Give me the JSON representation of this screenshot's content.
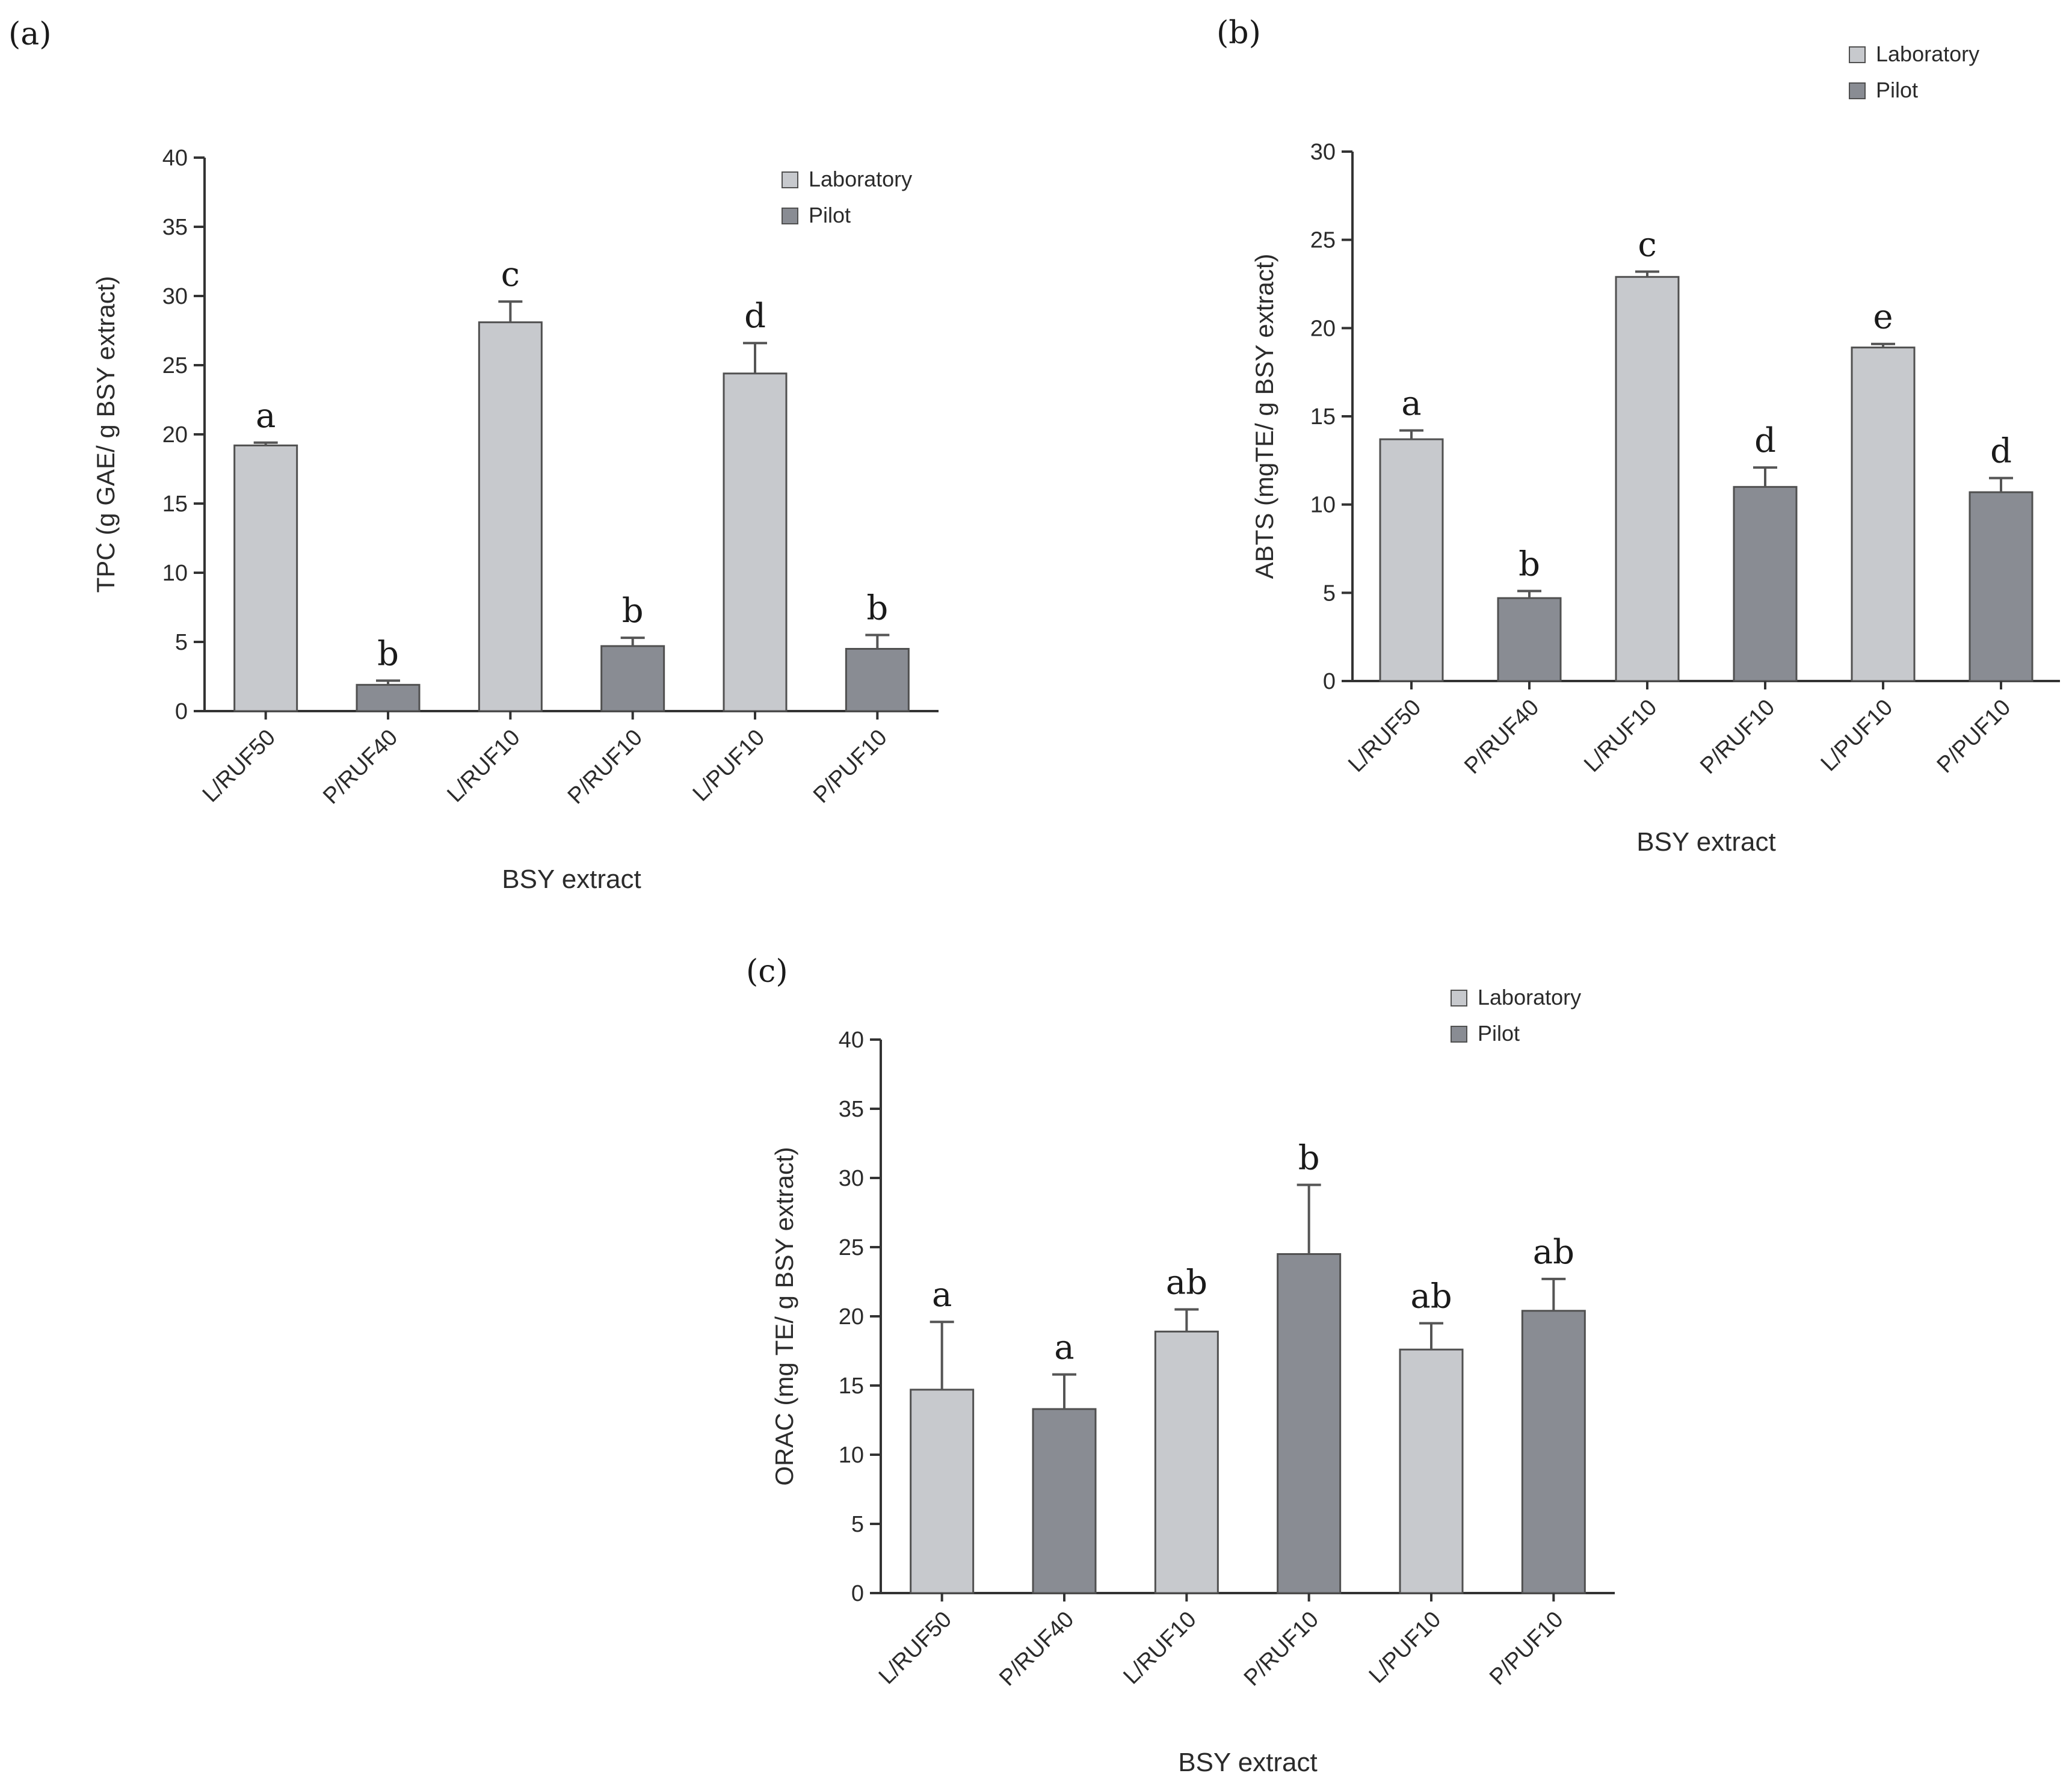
{
  "series_colors": {
    "Laboratory": "#c7c9cd",
    "Pilot": "#898c93"
  },
  "chart_data": [
    {
      "panel_label": "(a)",
      "type": "bar",
      "title": "",
      "xlabel": "BSY extract",
      "ylabel": "TPC (g GAE/ g BSY extract)",
      "ylim": [
        0,
        40
      ],
      "yticks": [
        0,
        5,
        10,
        15,
        20,
        25,
        30,
        35,
        40
      ],
      "legend": {
        "position": "top-right",
        "entries": [
          "Laboratory",
          "Pilot"
        ]
      },
      "categories": [
        "L/RUF50",
        "P/RUF40",
        "L/RUF10",
        "P/RUF10",
        "L/PUF10",
        "P/PUF10"
      ],
      "bar_series": [
        "Laboratory",
        "Pilot",
        "Laboratory",
        "Pilot",
        "Laboratory",
        "Pilot"
      ],
      "values": [
        19.2,
        1.9,
        28.1,
        4.7,
        24.4,
        4.5
      ],
      "errors": [
        0.2,
        0.3,
        1.5,
        0.6,
        2.2,
        1.0
      ],
      "significance": [
        "a",
        "b",
        "c",
        "b",
        "d",
        "b"
      ]
    },
    {
      "panel_label": "(b)",
      "type": "bar",
      "title": "",
      "xlabel": "BSY extract",
      "ylabel": "ABTS (mgTE/ g BSY extract)",
      "ylim": [
        0,
        30
      ],
      "yticks": [
        0,
        5,
        10,
        15,
        20,
        25,
        30
      ],
      "legend": {
        "position": "top-right",
        "entries": [
          "Laboratory",
          "Pilot"
        ]
      },
      "categories": [
        "L/RUF50",
        "P/RUF40",
        "L/RUF10",
        "P/RUF10",
        "L/PUF10",
        "P/PUF10"
      ],
      "bar_series": [
        "Laboratory",
        "Pilot",
        "Laboratory",
        "Pilot",
        "Laboratory",
        "Pilot"
      ],
      "values": [
        13.7,
        4.7,
        22.9,
        11.0,
        18.9,
        10.7
      ],
      "errors": [
        0.5,
        0.4,
        0.3,
        1.1,
        0.2,
        0.8
      ],
      "significance": [
        "a",
        "b",
        "c",
        "d",
        "e",
        "d"
      ]
    },
    {
      "panel_label": "(c)",
      "type": "bar",
      "title": "",
      "xlabel": "BSY extract",
      "ylabel": "ORAC (mg TE/ g BSY extract)",
      "ylim": [
        0,
        40
      ],
      "yticks": [
        0,
        5,
        10,
        15,
        20,
        25,
        30,
        35,
        40
      ],
      "legend": {
        "position": "top-right",
        "entries": [
          "Laboratory",
          "Pilot"
        ]
      },
      "categories": [
        "L/RUF50",
        "P/RUF40",
        "L/RUF10",
        "P/RUF10",
        "L/PUF10",
        "P/PUF10"
      ],
      "bar_series": [
        "Laboratory",
        "Pilot",
        "Laboratory",
        "Pilot",
        "Laboratory",
        "Pilot"
      ],
      "values": [
        14.7,
        13.3,
        18.9,
        24.5,
        17.6,
        20.4
      ],
      "errors": [
        4.9,
        2.5,
        1.6,
        5.0,
        1.9,
        2.3
      ],
      "significance": [
        "a",
        "a",
        "ab",
        "b",
        "ab",
        "ab"
      ]
    }
  ]
}
